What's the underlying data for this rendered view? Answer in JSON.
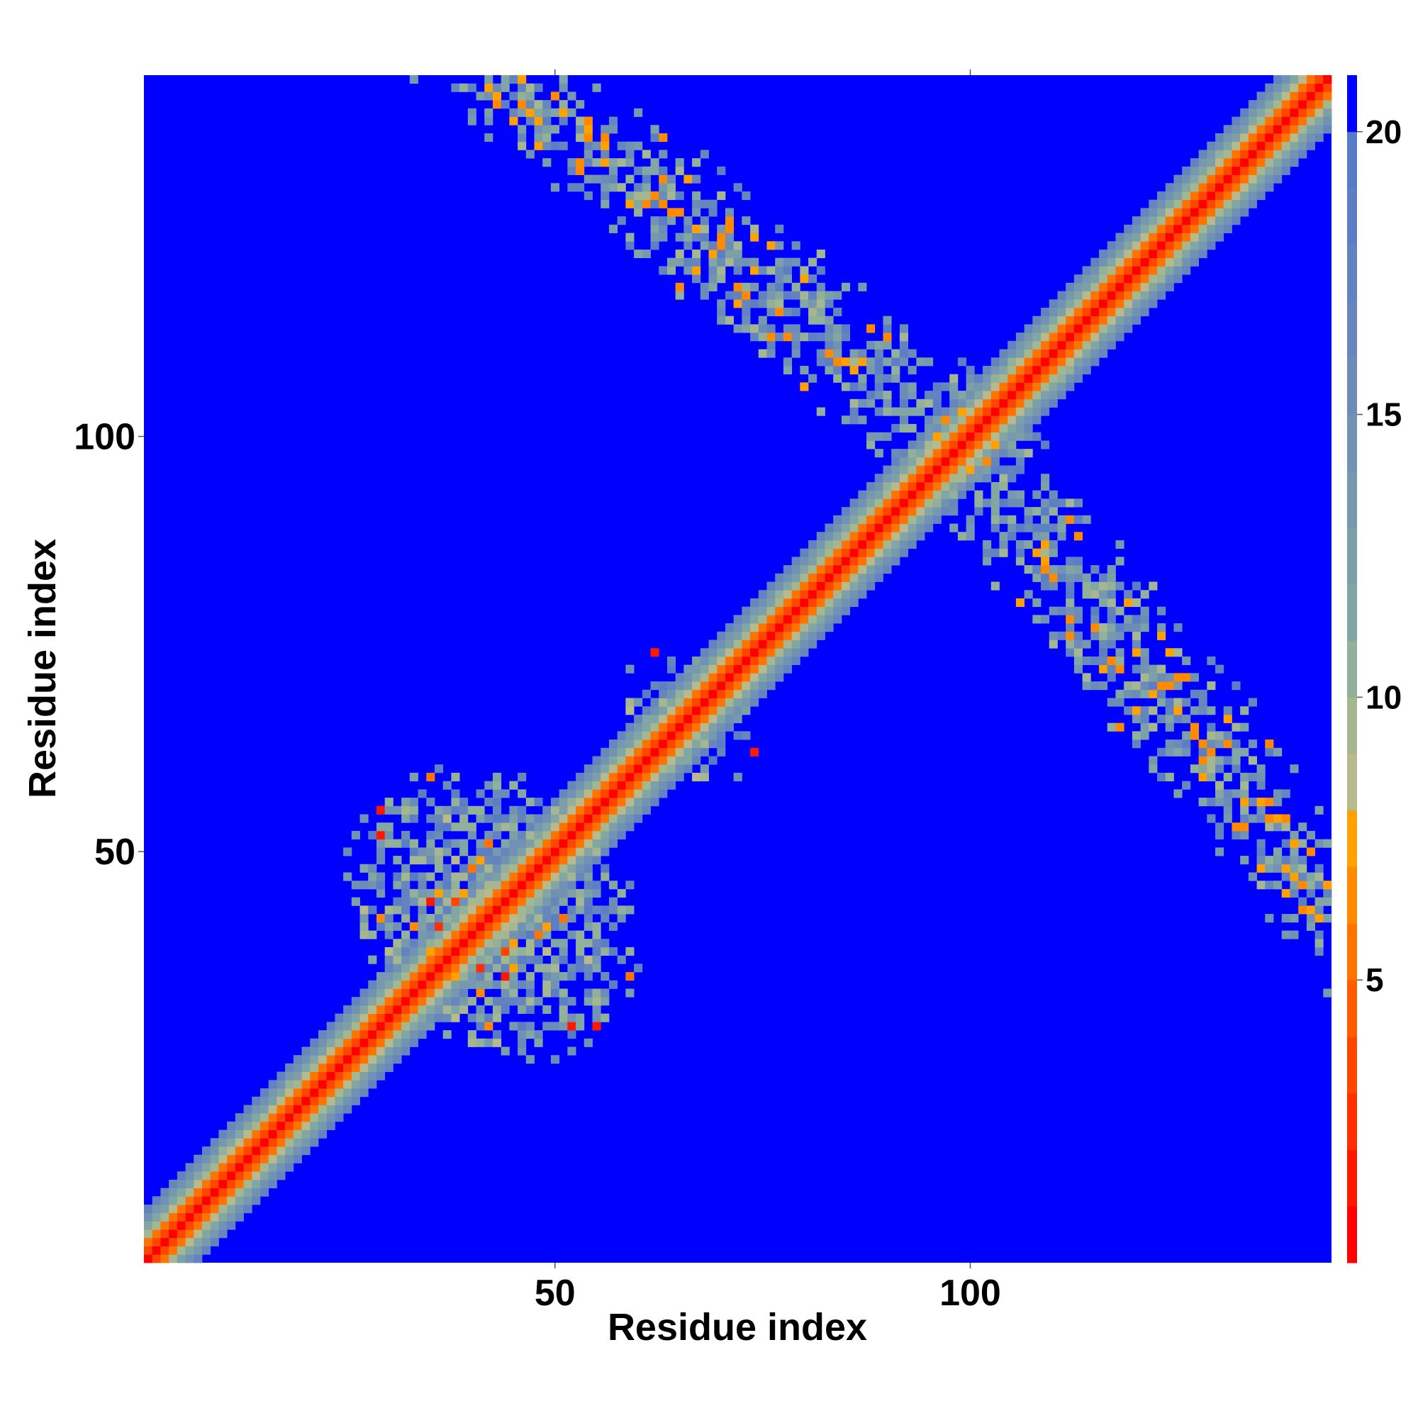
{
  "chart_data": {
    "type": "heatmap",
    "title": "",
    "xlabel": "Residue index",
    "ylabel": "Residue index",
    "n_residues": 143,
    "xlim": [
      0.5,
      143.5
    ],
    "ylim": [
      0.5,
      143.5
    ],
    "x_ticks": [
      50,
      100
    ],
    "y_ticks": [
      50,
      100
    ],
    "colorbar": {
      "min": 0,
      "max": 21,
      "ticks": [
        5,
        10,
        15,
        20
      ],
      "levels": [
        {
          "to": 1,
          "color": "#ff0000"
        },
        {
          "to": 2,
          "color": "#ff1800"
        },
        {
          "to": 3,
          "color": "#ff2f00"
        },
        {
          "to": 4,
          "color": "#ff4600"
        },
        {
          "to": 5,
          "color": "#ff5c00"
        },
        {
          "to": 6,
          "color": "#ff7300"
        },
        {
          "to": 7,
          "color": "#ff8a00"
        },
        {
          "to": 8,
          "color": "#ffa100"
        },
        {
          "to": 9,
          "color": "#b9ba8b"
        },
        {
          "to": 10,
          "color": "#a4b790"
        },
        {
          "to": 11,
          "color": "#92b09a"
        },
        {
          "to": 12,
          "color": "#82a6a4"
        },
        {
          "to": 13,
          "color": "#7c9fa8"
        },
        {
          "to": 14,
          "color": "#7798ae"
        },
        {
          "to": 15,
          "color": "#7292b3"
        },
        {
          "to": 16,
          "color": "#6c8cb8"
        },
        {
          "to": 17,
          "color": "#6786bc"
        },
        {
          "to": 18,
          "color": "#6282c0"
        },
        {
          "to": 19,
          "color": "#5c7ec4"
        },
        {
          "to": 20,
          "color": "#587bc6"
        },
        {
          "to": 21,
          "color": "#0000ff"
        }
      ]
    },
    "contact_regions": [
      {
        "name": "diagonal",
        "type": "diagonal",
        "width": 5.5
      },
      {
        "name": "N-terminal domain",
        "type": "blob",
        "center": [
          40,
          45
        ],
        "radius": 16,
        "density": 0.55
      },
      {
        "name": "N-terminal domain core",
        "type": "blob",
        "center": [
          47,
          38
        ],
        "radius": 13,
        "density": 0.55
      },
      {
        "name": "C-terminal antiparallel",
        "type": "antidiagonal",
        "i_range": [
          98,
          143
        ],
        "j_range": [
          45,
          100
        ],
        "width": 6,
        "density": 0.7
      },
      {
        "name": "small segment",
        "type": "blob",
        "center": [
          63,
          70
        ],
        "radius": 5,
        "density": 0.4
      }
    ]
  },
  "colors": {
    "background": "#ffffff",
    "far": "#0000ff",
    "near": "#ff0000"
  }
}
